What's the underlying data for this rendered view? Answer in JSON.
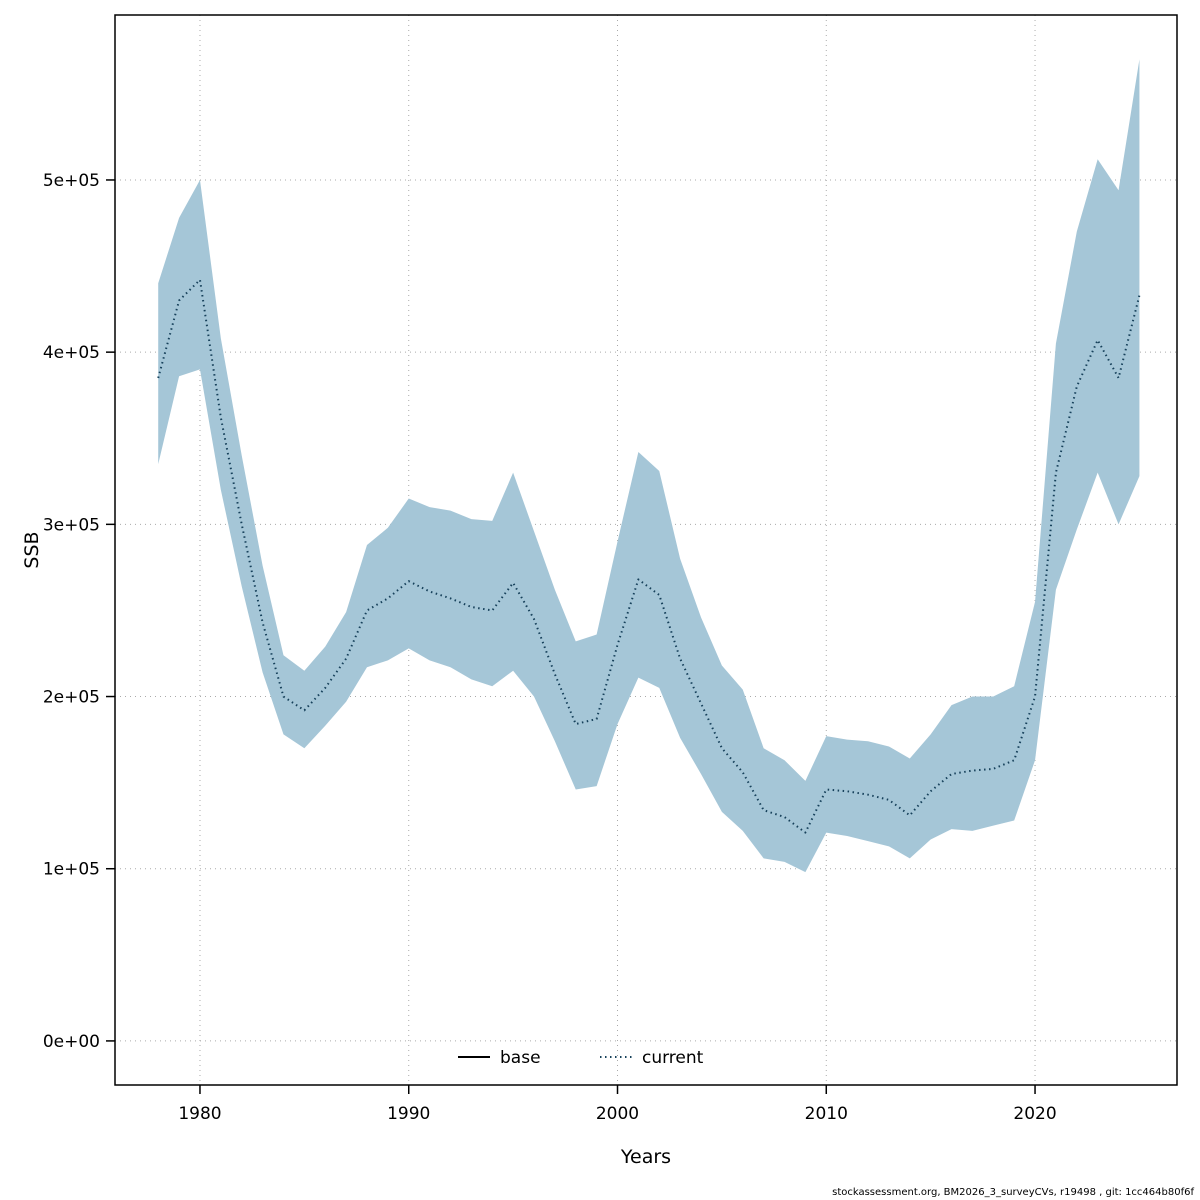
{
  "chart_data": {
    "type": "area",
    "title": "",
    "xlabel": "Years",
    "ylabel": "SSB",
    "grid": true,
    "legend_position": "bottom-center-inside",
    "xlim": [
      1975.93,
      2026.8
    ],
    "ylim": [
      -25600,
      595800
    ],
    "xticks": [
      1980,
      1990,
      2000,
      2010,
      2020
    ],
    "yticks": [
      0,
      100000,
      200000,
      300000,
      400000,
      500000
    ],
    "ytick_labels": [
      "0e+00",
      "1e+05",
      "2e+05",
      "3e+05",
      "4e+05",
      "5e+05"
    ],
    "x": [
      1978,
      1979,
      1980,
      1981,
      1982,
      1983,
      1984,
      1985,
      1986,
      1987,
      1988,
      1989,
      1990,
      1991,
      1992,
      1993,
      1994,
      1995,
      1996,
      1997,
      1998,
      1999,
      2000,
      2001,
      2002,
      2003,
      2004,
      2005,
      2006,
      2007,
      2008,
      2009,
      2010,
      2011,
      2012,
      2013,
      2014,
      2015,
      2016,
      2017,
      2018,
      2019,
      2020,
      2021,
      2022,
      2023,
      2024,
      2025
    ],
    "series": [
      {
        "name": "current",
        "style": "dotted",
        "color": "#16405a",
        "values": [
          385000,
          430000,
          442000,
          362000,
          300000,
          243000,
          200000,
          192000,
          205000,
          222000,
          250000,
          257000,
          267000,
          261000,
          257000,
          252000,
          250000,
          266000,
          245000,
          213000,
          184000,
          187000,
          230000,
          268000,
          259000,
          222000,
          196000,
          170000,
          156000,
          134000,
          130000,
          121000,
          146000,
          145000,
          143000,
          140000,
          131000,
          145000,
          155000,
          157000,
          158000,
          163000,
          200000,
          330000,
          380000,
          407000,
          385000,
          433000
        ]
      }
    ],
    "band": {
      "name": "confidence-interval",
      "color": "#a5c6d7",
      "upper": [
        440000,
        478000,
        500000,
        408000,
        340000,
        276000,
        224000,
        215000,
        229000,
        249000,
        288000,
        298000,
        315000,
        310000,
        308000,
        303000,
        302000,
        330000,
        296000,
        262000,
        232000,
        236000,
        290000,
        342000,
        331000,
        280000,
        246000,
        218000,
        204000,
        170000,
        163000,
        151000,
        177000,
        175000,
        174000,
        171000,
        164000,
        178000,
        195000,
        200000,
        200000,
        206000,
        255000,
        405000,
        470000,
        512000,
        494000,
        570000
      ],
      "lower": [
        335000,
        386000,
        390000,
        320000,
        264000,
        214000,
        178000,
        170000,
        183000,
        197000,
        217000,
        221000,
        228000,
        221000,
        217000,
        210000,
        206000,
        215000,
        200000,
        174000,
        146000,
        148000,
        184000,
        211000,
        205000,
        176000,
        155000,
        133000,
        122000,
        106000,
        104000,
        98000,
        121000,
        119000,
        116000,
        113000,
        106000,
        117000,
        123000,
        122000,
        125000,
        128000,
        163000,
        262000,
        297000,
        330000,
        300000,
        328000
      ]
    },
    "legend": [
      {
        "label": "base",
        "style": "solid",
        "color": "#000000"
      },
      {
        "label": "current",
        "style": "dotted",
        "color": "#16405a"
      }
    ],
    "grid_color": "#aaaaaa"
  },
  "footer": "stockassessment.org, BM2026_3_surveyCVs, r19498 , git: 1cc464b80f6f"
}
